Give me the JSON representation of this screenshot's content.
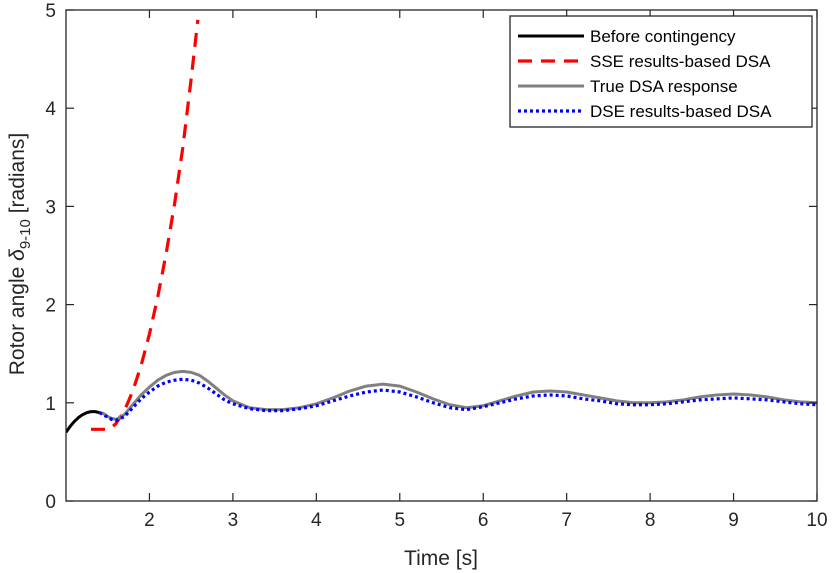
{
  "chart_data": {
    "type": "line",
    "xlabel": "Time [s]",
    "ylabel": {
      "prefix": "Rotor angle ",
      "symbol": "δ",
      "subscript": "9-10",
      "suffix": " [radians]"
    },
    "xlim": [
      1,
      10
    ],
    "ylim": [
      0,
      5
    ],
    "xticks": [
      2,
      3,
      4,
      5,
      6,
      7,
      8,
      9,
      10
    ],
    "yticks": [
      0,
      1,
      2,
      3,
      4,
      5
    ],
    "grid": false,
    "legend_position": "top-right",
    "series": [
      {
        "name": "Before contingency",
        "color": "#000000",
        "style": "solid",
        "x": [
          1.0,
          1.05,
          1.1,
          1.15,
          1.2,
          1.25,
          1.3,
          1.35,
          1.4
        ],
        "y": [
          0.7,
          0.76,
          0.81,
          0.85,
          0.88,
          0.9,
          0.91,
          0.91,
          0.9
        ]
      },
      {
        "name": "SSE results-based DSA",
        "color": "#ff0000",
        "style": "dashed",
        "x": [
          1.3,
          1.45,
          1.5,
          1.55,
          1.6,
          1.7,
          1.8,
          1.9,
          2.0,
          2.1,
          2.2,
          2.3,
          2.4,
          2.5,
          2.58
        ],
        "y": [
          0.73,
          0.73,
          0.73,
          0.75,
          0.79,
          0.92,
          1.12,
          1.38,
          1.7,
          2.08,
          2.52,
          3.02,
          3.6,
          4.3,
          4.9
        ]
      },
      {
        "name": "True DSA response",
        "color": "#808080",
        "style": "solid",
        "x": [
          1.4,
          1.45,
          1.5,
          1.55,
          1.6,
          1.7,
          1.8,
          1.9,
          2.0,
          2.1,
          2.2,
          2.3,
          2.4,
          2.5,
          2.6,
          2.7,
          2.8,
          2.9,
          3.0,
          3.2,
          3.4,
          3.6,
          3.8,
          4.0,
          4.2,
          4.4,
          4.6,
          4.8,
          5.0,
          5.2,
          5.4,
          5.6,
          5.8,
          6.0,
          6.2,
          6.4,
          6.6,
          6.8,
          7.0,
          7.2,
          7.4,
          7.6,
          7.8,
          8.0,
          8.2,
          8.4,
          8.6,
          8.8,
          9.0,
          9.2,
          9.4,
          9.6,
          9.8,
          10.0
        ],
        "y": [
          0.9,
          0.89,
          0.86,
          0.84,
          0.83,
          0.88,
          0.98,
          1.08,
          1.16,
          1.23,
          1.28,
          1.31,
          1.32,
          1.31,
          1.28,
          1.22,
          1.15,
          1.08,
          1.02,
          0.95,
          0.93,
          0.93,
          0.95,
          0.99,
          1.05,
          1.12,
          1.17,
          1.19,
          1.17,
          1.11,
          1.04,
          0.98,
          0.95,
          0.97,
          1.02,
          1.07,
          1.11,
          1.12,
          1.11,
          1.08,
          1.05,
          1.02,
          1.0,
          1.0,
          1.01,
          1.03,
          1.06,
          1.08,
          1.09,
          1.08,
          1.06,
          1.03,
          1.01,
          1.0
        ]
      },
      {
        "name": "DSE results-based DSA",
        "color": "#0000ff",
        "style": "dotted",
        "x": [
          1.4,
          1.45,
          1.5,
          1.55,
          1.6,
          1.7,
          1.8,
          1.9,
          2.0,
          2.1,
          2.2,
          2.3,
          2.4,
          2.5,
          2.6,
          2.7,
          2.8,
          2.9,
          3.0,
          3.2,
          3.4,
          3.6,
          3.8,
          4.0,
          4.2,
          4.4,
          4.6,
          4.8,
          5.0,
          5.2,
          5.4,
          5.6,
          5.8,
          6.0,
          6.2,
          6.4,
          6.6,
          6.8,
          7.0,
          7.2,
          7.4,
          7.6,
          7.8,
          8.0,
          8.2,
          8.4,
          8.6,
          8.8,
          9.0,
          9.2,
          9.4,
          9.6,
          9.8,
          10.0
        ],
        "y": [
          0.9,
          0.88,
          0.85,
          0.83,
          0.82,
          0.86,
          0.95,
          1.04,
          1.11,
          1.17,
          1.21,
          1.23,
          1.24,
          1.23,
          1.2,
          1.15,
          1.09,
          1.03,
          0.99,
          0.94,
          0.92,
          0.92,
          0.94,
          0.97,
          1.02,
          1.07,
          1.11,
          1.13,
          1.11,
          1.06,
          1.0,
          0.95,
          0.93,
          0.96,
          1.0,
          1.04,
          1.07,
          1.08,
          1.07,
          1.04,
          1.02,
          0.99,
          0.98,
          0.98,
          0.99,
          1.01,
          1.03,
          1.04,
          1.05,
          1.04,
          1.03,
          1.01,
          0.99,
          0.98
        ]
      }
    ]
  }
}
